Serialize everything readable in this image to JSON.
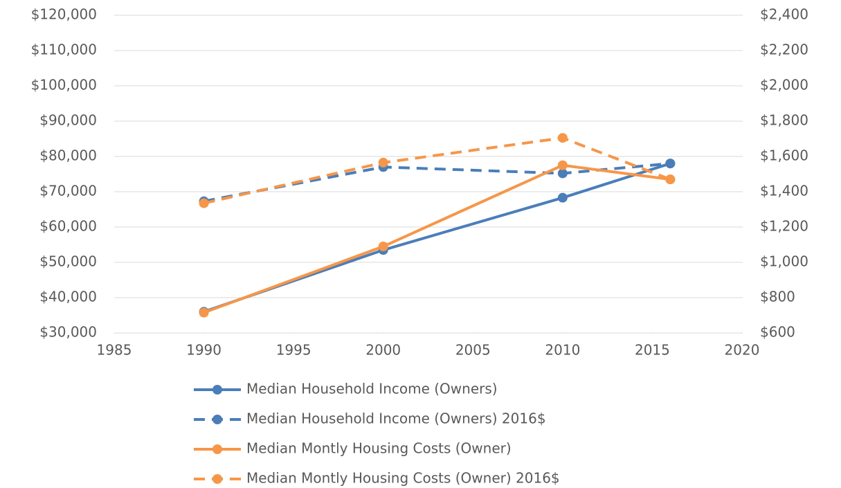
{
  "chart_data": {
    "type": "line",
    "x": [
      1990,
      2000,
      2010,
      2016
    ],
    "series": [
      {
        "name": "Median Household Income (Owners)",
        "color": "#4a7ebb",
        "dashed": false,
        "axis": "y",
        "values": [
          36000,
          53500,
          68300,
          78000
        ]
      },
      {
        "name": "Median Household Income (Owners) 2016$",
        "color": "#4a7ebb",
        "dashed": true,
        "axis": "y",
        "values": [
          67300,
          77000,
          75200,
          78000
        ]
      },
      {
        "name": "Median Montly Housing Costs (Owner)",
        "color": "#f79646",
        "dashed": false,
        "axis": "y2",
        "values": [
          715,
          1090,
          1550,
          1470
        ]
      },
      {
        "name": "Median Montly Housing Costs (Owner) 2016$",
        "color": "#f79646",
        "dashed": true,
        "axis": "y2",
        "values": [
          1335,
          1565,
          1705,
          1470
        ]
      }
    ],
    "xlim": [
      1985,
      2020
    ],
    "xticks": [
      1985,
      1990,
      1995,
      2000,
      2005,
      2010,
      2015,
      2020
    ],
    "ylim": [
      30000,
      120000
    ],
    "yticks": [
      {
        "value": 30000,
        "label": "$30,000"
      },
      {
        "value": 40000,
        "label": "$40,000"
      },
      {
        "value": 50000,
        "label": "$50,000"
      },
      {
        "value": 60000,
        "label": "$60,000"
      },
      {
        "value": 70000,
        "label": "$70,000"
      },
      {
        "value": 80000,
        "label": "$80,000"
      },
      {
        "value": 90000,
        "label": "$90,000"
      },
      {
        "value": 100000,
        "label": "$100,000"
      },
      {
        "value": 110000,
        "label": "$110,000"
      },
      {
        "value": 120000,
        "label": "$120,000"
      }
    ],
    "y2lim": [
      600,
      2400
    ],
    "y2ticks": [
      {
        "value": 600,
        "label": "$600"
      },
      {
        "value": 800,
        "label": "$800"
      },
      {
        "value": 1000,
        "label": "$1,000"
      },
      {
        "value": 1200,
        "label": "$1,200"
      },
      {
        "value": 1400,
        "label": "$1,400"
      },
      {
        "value": 1600,
        "label": "$1,600"
      },
      {
        "value": 1800,
        "label": "$1,800"
      },
      {
        "value": 2000,
        "label": "$2,000"
      },
      {
        "value": 2200,
        "label": "$2,200"
      },
      {
        "value": 2400,
        "label": "$2,400"
      }
    ],
    "grid": true,
    "legend": "bottom"
  }
}
